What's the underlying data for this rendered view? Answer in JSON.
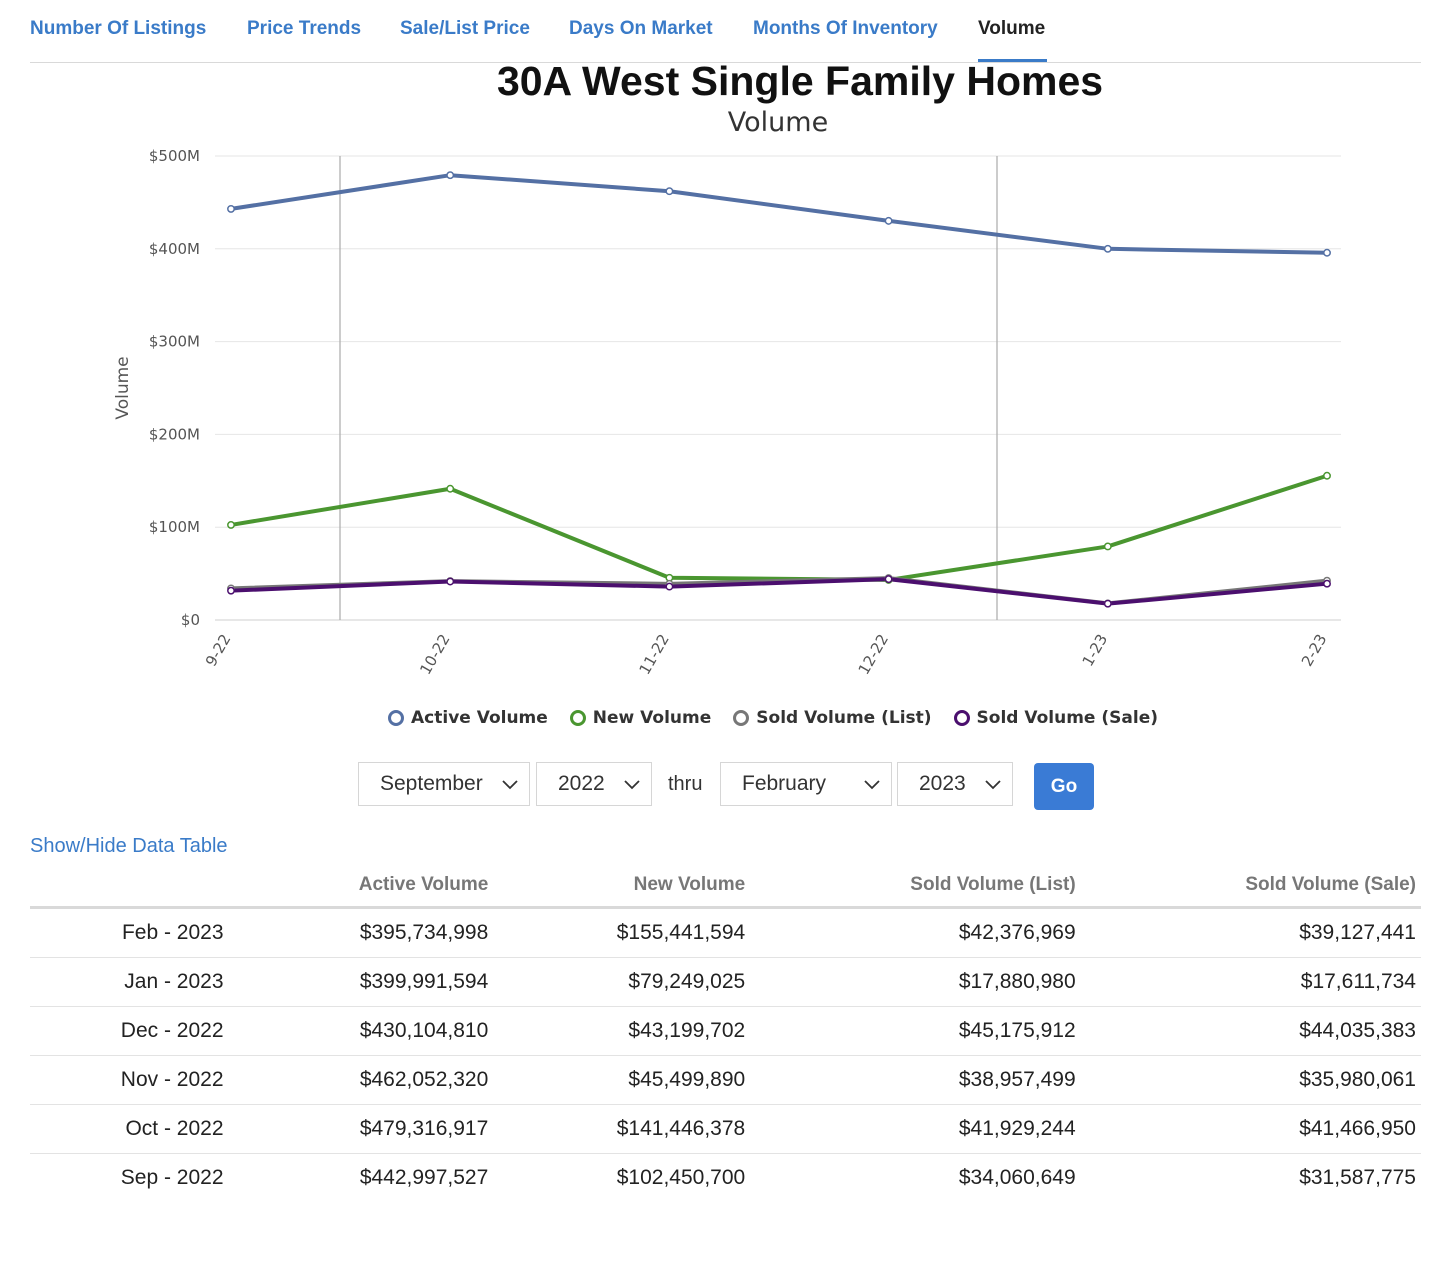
{
  "tabs": [
    {
      "label": "Number Of Listings",
      "active": false
    },
    {
      "label": "Price Trends",
      "active": false
    },
    {
      "label": "Sale/List Price",
      "active": false
    },
    {
      "label": "Days On Market",
      "active": false
    },
    {
      "label": "Months Of Inventory",
      "active": false
    },
    {
      "label": "Volume",
      "active": true
    }
  ],
  "chart_data": {
    "type": "line",
    "title": "30A West Single Family Homes",
    "subtitle": "Volume",
    "xlabel": "",
    "ylabel": "Volume",
    "categories": [
      "9-22",
      "10-22",
      "11-22",
      "12-22",
      "1-23",
      "2-23"
    ],
    "ylim": [
      0,
      500000000
    ],
    "yticks": [
      {
        "value": 0,
        "label": "$0"
      },
      {
        "value": 100000000,
        "label": "$100M"
      },
      {
        "value": 200000000,
        "label": "$200M"
      },
      {
        "value": 300000000,
        "label": "$300M"
      },
      {
        "value": 400000000,
        "label": "$400M"
      },
      {
        "value": 500000000,
        "label": "$500M"
      }
    ],
    "grid": true,
    "legend_position": "bottom",
    "series": [
      {
        "name": "Active Volume",
        "color": "#5470a4",
        "values": [
          442997527,
          479316917,
          462052320,
          430104810,
          399991594,
          395734998
        ]
      },
      {
        "name": "New Volume",
        "color": "#4a9630",
        "values": [
          102450700,
          141446378,
          45499890,
          43199702,
          79249025,
          155441594
        ]
      },
      {
        "name": "Sold Volume (List)",
        "color": "#777777",
        "values": [
          34060649,
          41929244,
          38957499,
          45175912,
          17880980,
          42376969
        ]
      },
      {
        "name": "Sold Volume (Sale)",
        "color": "#4b0f6e",
        "values": [
          31587775,
          41466950,
          35980061,
          44035383,
          17611734,
          39127441
        ]
      }
    ]
  },
  "controls": {
    "start_month": "September",
    "start_year": "2022",
    "thru_label": "thru",
    "end_month": "February",
    "end_year": "2023",
    "go_label": "Go"
  },
  "table": {
    "toggle_label": "Show/Hide Data Table",
    "headers": [
      "",
      "Active Volume",
      "New Volume",
      "Sold Volume (List)",
      "Sold Volume (Sale)"
    ],
    "rows": [
      [
        "Feb - 2023",
        "$395,734,998",
        "$155,441,594",
        "$42,376,969",
        "$39,127,441"
      ],
      [
        "Jan - 2023",
        "$399,991,594",
        "$79,249,025",
        "$17,880,980",
        "$17,611,734"
      ],
      [
        "Dec - 2022",
        "$430,104,810",
        "$43,199,702",
        "$45,175,912",
        "$44,035,383"
      ],
      [
        "Nov - 2022",
        "$462,052,320",
        "$45,499,890",
        "$38,957,499",
        "$35,980,061"
      ],
      [
        "Oct - 2022",
        "$479,316,917",
        "$141,446,378",
        "$41,929,244",
        "$41,466,950"
      ],
      [
        "Sep - 2022",
        "$442,997,527",
        "$102,450,700",
        "$34,060,649",
        "$31,587,775"
      ]
    ]
  }
}
